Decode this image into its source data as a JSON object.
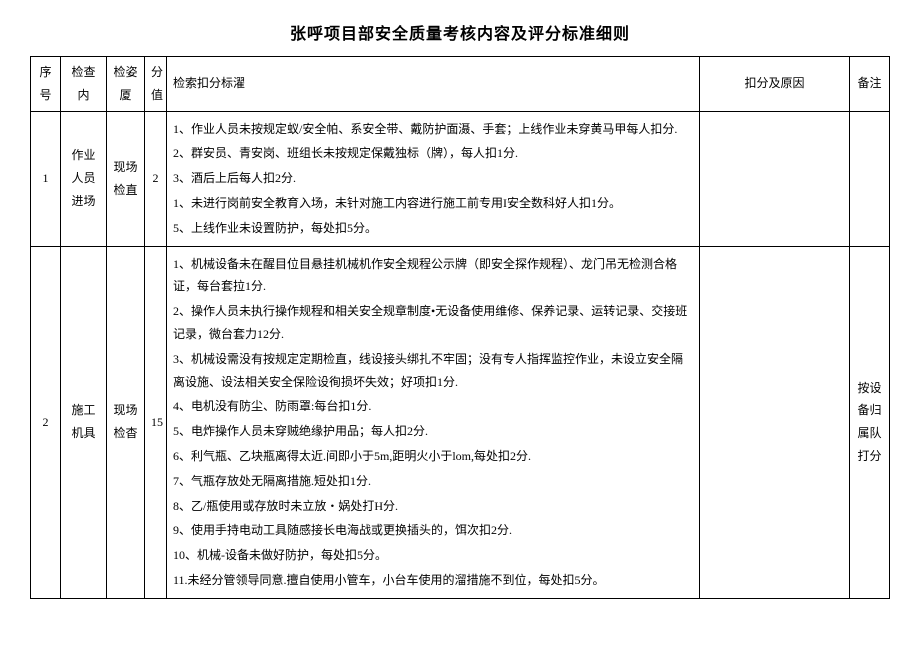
{
  "title": "张呼项目部安全质量考核内容及评分标准细则",
  "columns": {
    "seq": "序号",
    "item": "检查内",
    "type": "检姿厦",
    "score": "分值",
    "criteria": "检索扣分标濯",
    "reason": "扣分及原因",
    "note": "备注"
  },
  "rows": [
    {
      "seq": "1",
      "item": "作业人员进场",
      "type": "现场检直",
      "score": "2",
      "criteria": [
        "1、作业人员未按规定蚁/安全帕、系安全带、戴防护面滠、手套；上线作业未穿黄马甲每人扣分.",
        "2、群安员、青安岗、班组长未按规定保戴独标（牌），每人扣1分.",
        "3、酒后上后每人扣2分.",
        "1、未进行岗前安全教育入场，未针对施工内容进行施工前专用I安全数科好人扣1分。",
        "5、上线作业未设置防护，每处扣5分。"
      ],
      "reason": "",
      "note": ""
    },
    {
      "seq": "2",
      "item": "施工机具",
      "type": "现场检杳",
      "score": "15",
      "criteria": [
        "1、机械设备未在醒目位目悬挂机械机作安全规程公示牌（即安全探作规程）、龙门吊无检测合格证，每台套拉1分.",
        "2、操作人员未执行操作规程和相关安全规章制度•无设备使用维修、保养记录、运转记录、交接班记录，微台套力12分.",
        "3、机械设需没有按规定定期检直，线设接头绑扎不牢固；没有专人指挥监控作业，未设立安全隔离设施、设法相关安全保险设徇损坏失效；好项扣1分.",
        "4、电机没有防尘、防雨罩:每台扣1分.",
        "5、电炸操作人员未穿贼绝缘护用品；每人扣2分.",
        "6、利气瓶、乙块瓶离得太近.间即小于5m,距明火小于lom,每处扣2分.",
        "7、气瓶存放处无隔离措施.短处扣1分.",
        "8、乙/瓶使用或存放时未立放・娲处打H分.",
        "9、使用手持电动工具随感接长电海战或更换插头的，饵次扣2分.",
        "10、机械-设备未做好防护，每处扣5分。",
        "11.未经分管领导同意.擅自使用小管车，小台车使用的溜措施不到位，每处扣5分。"
      ],
      "reason": "",
      "note": "按设备归属队打分"
    }
  ],
  "colors": {
    "background": "#ffffff",
    "border": "#000000",
    "text": "#000000"
  },
  "fonts": {
    "title_size": 16,
    "cell_size": 12,
    "family": "SimSun"
  }
}
